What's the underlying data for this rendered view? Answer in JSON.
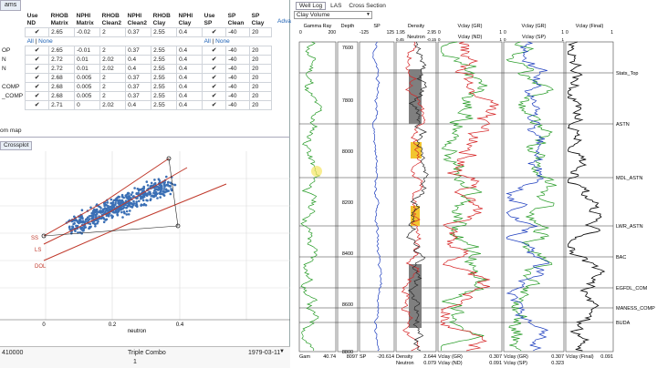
{
  "left": {
    "top_tab": "ams",
    "headers": [
      "Use ND",
      "RHOB Matrix",
      "NPHI Matrix",
      "RHOB Clean2",
      "NPHI Clean2",
      "RHOB Clay",
      "NPHI Clay",
      "Use SP",
      "SP Clean",
      "SP Clay"
    ],
    "adv_label": "Adva",
    "all_label": "All",
    "none_label": "None",
    "rows": [
      {
        "name": "",
        "rm": "2.65",
        "nm": "-0.02",
        "rc": "2",
        "nc": "0.37",
        "rcl": "2.55",
        "ncl": "0.4",
        "spc": "-40",
        "spcl": "20"
      },
      {
        "name": "OP",
        "rm": "2.65",
        "nm": "-0.01",
        "rc": "2",
        "nc": "0.37",
        "rcl": "2.55",
        "ncl": "0.4",
        "spc": "-40",
        "spcl": "20"
      },
      {
        "name": "N",
        "rm": "2.72",
        "nm": "0.01",
        "rc": "2.02",
        "nc": "0.4",
        "rcl": "2.55",
        "ncl": "0.4",
        "spc": "-40",
        "spcl": "20"
      },
      {
        "name": "N",
        "rm": "2.72",
        "nm": "0.01",
        "rc": "2.02",
        "nc": "0.4",
        "rcl": "2.55",
        "ncl": "0.4",
        "spc": "-40",
        "spcl": "20"
      },
      {
        "name": "",
        "rm": "2.68",
        "nm": "0.005",
        "rc": "2",
        "nc": "0.37",
        "rcl": "2.55",
        "ncl": "0.4",
        "spc": "-40",
        "spcl": "20"
      },
      {
        "name": "COMP",
        "rm": "2.68",
        "nm": "0.005",
        "rc": "2",
        "nc": "0.37",
        "rcl": "2.55",
        "ncl": "0.4",
        "spc": "-40",
        "spcl": "20"
      },
      {
        "name": "_COMP",
        "rm": "2.68",
        "nm": "0.005",
        "rc": "2",
        "nc": "0.37",
        "rcl": "2.55",
        "ncl": "0.4",
        "spc": "-40",
        "spcl": "20"
      },
      {
        "name": "",
        "rm": "2.71",
        "nm": "0",
        "rc": "2.02",
        "nc": "0.4",
        "rcl": "2.55",
        "ncl": "0.4",
        "spc": "-40",
        "spcl": "20"
      }
    ],
    "zoom_map_label": "om map",
    "crossplot_tab": "Crossplot",
    "crossplot_labels": {
      "ss": "SS",
      "ls": "LS",
      "dol": "DOL",
      "xlabel": "neutron"
    },
    "xticks": [
      "0",
      "0.2",
      "0.4"
    ],
    "bottom": {
      "left_value": "410000",
      "center_value": "Triple Combo",
      "right_value": "1979-03-11",
      "page": "1"
    }
  },
  "right": {
    "tabs": [
      "Well Log",
      "LAS",
      "Cross Section"
    ],
    "dropdown_value": "Clay Volume",
    "columns": [
      {
        "title": "Gamma Ray",
        "range_min": "0",
        "range_max": "200",
        "footer_label": "Gam",
        "footer_value": "40.74"
      },
      {
        "title": "Depth",
        "footer_label": "",
        "footer_value": "8097"
      },
      {
        "title": "SP",
        "range_min": "-125",
        "range_max": "125",
        "footer_label": "SP",
        "footer_value": "-20.614"
      },
      {
        "title": "Density",
        "range_min": "1.95",
        "range_max": "2.95",
        "title2": "Neutron",
        "range2_min": "0.45",
        "range2_max": "-0.15",
        "footer_label": "Density",
        "footer_value": "2.644",
        "footer_label2": "Neutron",
        "footer_value2": "0.079"
      },
      {
        "title": "Vclay (GR)",
        "range_min": "0",
        "range_max": "1",
        "title2": "Vclay (ND)",
        "range2_min": "0",
        "range2_max": "1",
        "footer_label": "Vclay (GR)",
        "footer_value": "0.307",
        "footer_label2": "Vclay (ND)",
        "footer_value2": "0.091"
      },
      {
        "title": "Vclay (GR)",
        "range_min": "0",
        "range_max": "1",
        "title2": "Vclay (SP)",
        "range2_min": "0",
        "range2_max": "1",
        "footer_label": "Vclay (GR)",
        "footer_value": "0.307",
        "footer_label2": "Vclay (SP)",
        "footer_value2": "0.323"
      },
      {
        "title": "Vclay (Final)",
        "range_min": "0",
        "range_max": "1",
        "footer_label": "Vclay (Final)",
        "footer_value": "0.091"
      }
    ],
    "depth_ticks": [
      "7600",
      "7800",
      "8000",
      "8200",
      "8400",
      "8600",
      "8800"
    ],
    "markers": [
      "Stats_Top",
      "ASTN",
      "MDL_ASTN",
      "LWR_ASTN",
      "BAC",
      "EGFDL_COM",
      "MANESS_COMP",
      "BUDA"
    ]
  },
  "colors": {
    "gr": "#2a9d2a",
    "sp": "#1f3fbf",
    "density": "#d62728",
    "neutron": "#2a2a2a",
    "fill_gray": "#7f7f7f",
    "fill_yellow": "#f2c530",
    "crossplot_points": "#3a6fb5",
    "lines_red": "#c0392b"
  }
}
